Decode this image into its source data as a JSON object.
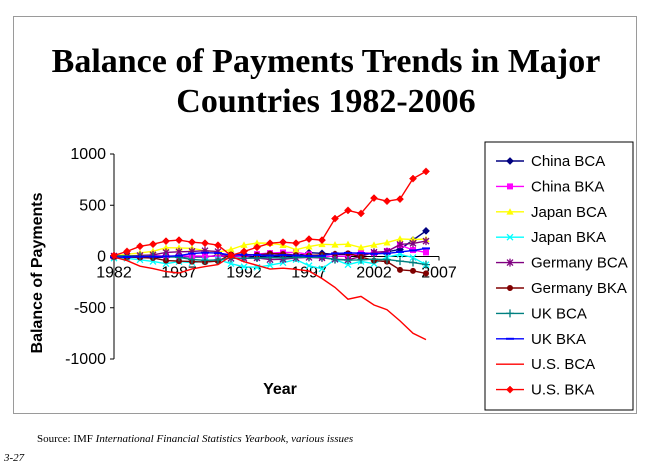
{
  "chart_data": {
    "type": "line",
    "title_lines": [
      "Balance of Payments Trends in Major",
      "Countries 1982-2006"
    ],
    "xlabel": "Year",
    "ylabel": "Balance of Payments",
    "x": [
      1982,
      1983,
      1984,
      1985,
      1986,
      1987,
      1988,
      1989,
      1990,
      1991,
      1992,
      1993,
      1994,
      1995,
      1996,
      1997,
      1998,
      1999,
      2000,
      2001,
      2002,
      2003,
      2004,
      2005,
      2006
    ],
    "xticks": [
      1982,
      1987,
      1992,
      1997,
      2002,
      2007
    ],
    "xlim": [
      1982,
      2007
    ],
    "ylim": [
      -1000,
      1000
    ],
    "yticks": [
      1000,
      500,
      0,
      -500,
      -1000
    ],
    "grid": false,
    "legend_position": "right",
    "series": [
      {
        "name": "China BCA",
        "color": "#000080",
        "marker": "diamond",
        "values": [
          6,
          4,
          2,
          -11,
          -7,
          0,
          -4,
          -4,
          12,
          13,
          6,
          -12,
          8,
          2,
          7,
          37,
          31,
          21,
          20,
          17,
          35,
          46,
          69,
          161,
          250
        ]
      },
      {
        "name": "China BKA",
        "color": "#ff00ff",
        "marker": "square",
        "values": [
          0,
          -1,
          -2,
          9,
          6,
          3,
          6,
          4,
          3,
          8,
          -1,
          23,
          33,
          39,
          40,
          21,
          -6,
          5,
          2,
          35,
          32,
          53,
          111,
          63,
          40
        ]
      },
      {
        "name": "Japan BCA",
        "color": "#ffff00",
        "marker": "triangle",
        "values": [
          7,
          21,
          35,
          51,
          86,
          84,
          80,
          57,
          44,
          68,
          112,
          132,
          130,
          111,
          66,
          97,
          119,
          115,
          120,
          88,
          113,
          136,
          172,
          166,
          170
        ]
      },
      {
        "name": "Japan BKA",
        "color": "#00ffff",
        "marker": "x",
        "values": [
          -16,
          -18,
          -32,
          -48,
          -70,
          -50,
          -60,
          -45,
          -30,
          -70,
          -100,
          -105,
          -85,
          -60,
          -30,
          -90,
          -120,
          -30,
          -80,
          -48,
          -70,
          -5,
          20,
          -10,
          -80
        ]
      },
      {
        "name": "Germany BCA",
        "color": "#800080",
        "marker": "star",
        "values": [
          5,
          5,
          10,
          16,
          40,
          46,
          50,
          57,
          48,
          -18,
          -19,
          -14,
          -30,
          -27,
          -14,
          -9,
          -14,
          -26,
          -32,
          0,
          42,
          48,
          118,
          128,
          150
        ]
      },
      {
        "name": "Germany BKA",
        "color": "#800000",
        "marker": "circle",
        "values": [
          -5,
          -5,
          -10,
          -15,
          -40,
          -45,
          -50,
          -55,
          -45,
          20,
          20,
          15,
          28,
          25,
          13,
          10,
          15,
          25,
          30,
          -5,
          -40,
          -50,
          -130,
          -140,
          -165
        ]
      },
      {
        "name": "UK BCA",
        "color": "#008080",
        "marker": "plus",
        "values": [
          8,
          5,
          2,
          2,
          -1,
          -8,
          -29,
          -37,
          -33,
          -15,
          -17,
          -15,
          -10,
          -14,
          -10,
          -5,
          -7,
          -30,
          -35,
          -33,
          -26,
          -30,
          -45,
          -59,
          -79
        ]
      },
      {
        "name": "UK BKA",
        "color": "#0000ff",
        "marker": "dash",
        "values": [
          -8,
          -5,
          -2,
          -2,
          1,
          8,
          29,
          37,
          33,
          15,
          17,
          15,
          10,
          14,
          10,
          5,
          7,
          30,
          35,
          33,
          26,
          30,
          45,
          59,
          79
        ]
      },
      {
        "name": "U.S. BCA",
        "color": "#ff0000",
        "marker": "none",
        "values": [
          -6,
          -40,
          -95,
          -118,
          -147,
          -161,
          -121,
          -99,
          -79,
          3,
          -51,
          -86,
          -123,
          -114,
          -125,
          -141,
          -215,
          -301,
          -417,
          -389,
          -473,
          -519,
          -628,
          -749,
          -811
        ]
      },
      {
        "name": "U.S. BKA",
        "color": "#ff0000",
        "marker": "diamond",
        "values": [
          10,
          50,
          100,
          120,
          150,
          160,
          140,
          130,
          110,
          10,
          50,
          90,
          130,
          140,
          130,
          170,
          160,
          370,
          450,
          420,
          570,
          540,
          560,
          760,
          830
        ]
      }
    ]
  },
  "footer": {
    "source_prefix": "Source: IMF ",
    "source_italic": "International Financial Statistics Yearbook, various issues",
    "slide_number": "3-27"
  }
}
